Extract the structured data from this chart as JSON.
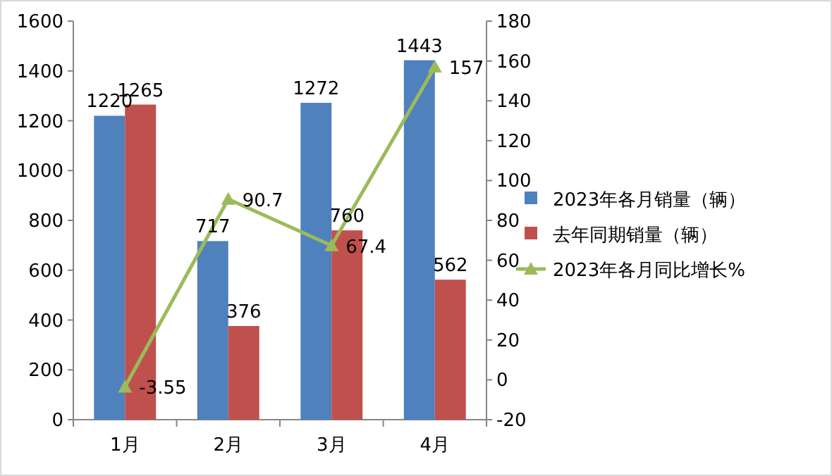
{
  "chart_data": {
    "type": "bar",
    "categories": [
      "1月",
      "2月",
      "3月",
      "4月"
    ],
    "series": [
      {
        "name": "2023年各月销量（辆）",
        "color": "#4f81bd",
        "values": [
          1220,
          717,
          1272,
          1443
        ]
      },
      {
        "name": "去年同期销量（辆）",
        "color": "#c0504d",
        "values": [
          1265,
          376,
          760,
          562
        ]
      },
      {
        "name": "2023年各月同比增长%",
        "color": "#9bbb59",
        "type": "line",
        "axis": "y2",
        "marker": "triangle",
        "values": [
          -3.55,
          90.7,
          67.4,
          157
        ]
      }
    ],
    "ylim": [
      0,
      1600
    ],
    "yticks": [
      0,
      200,
      400,
      600,
      800,
      1000,
      1200,
      1400,
      1600
    ],
    "y2lim": [
      -20,
      180
    ],
    "y2ticks": [
      -20,
      0,
      20,
      40,
      60,
      80,
      100,
      120,
      140,
      160,
      180
    ],
    "data_labels": true,
    "legend": "right",
    "grid": false
  }
}
